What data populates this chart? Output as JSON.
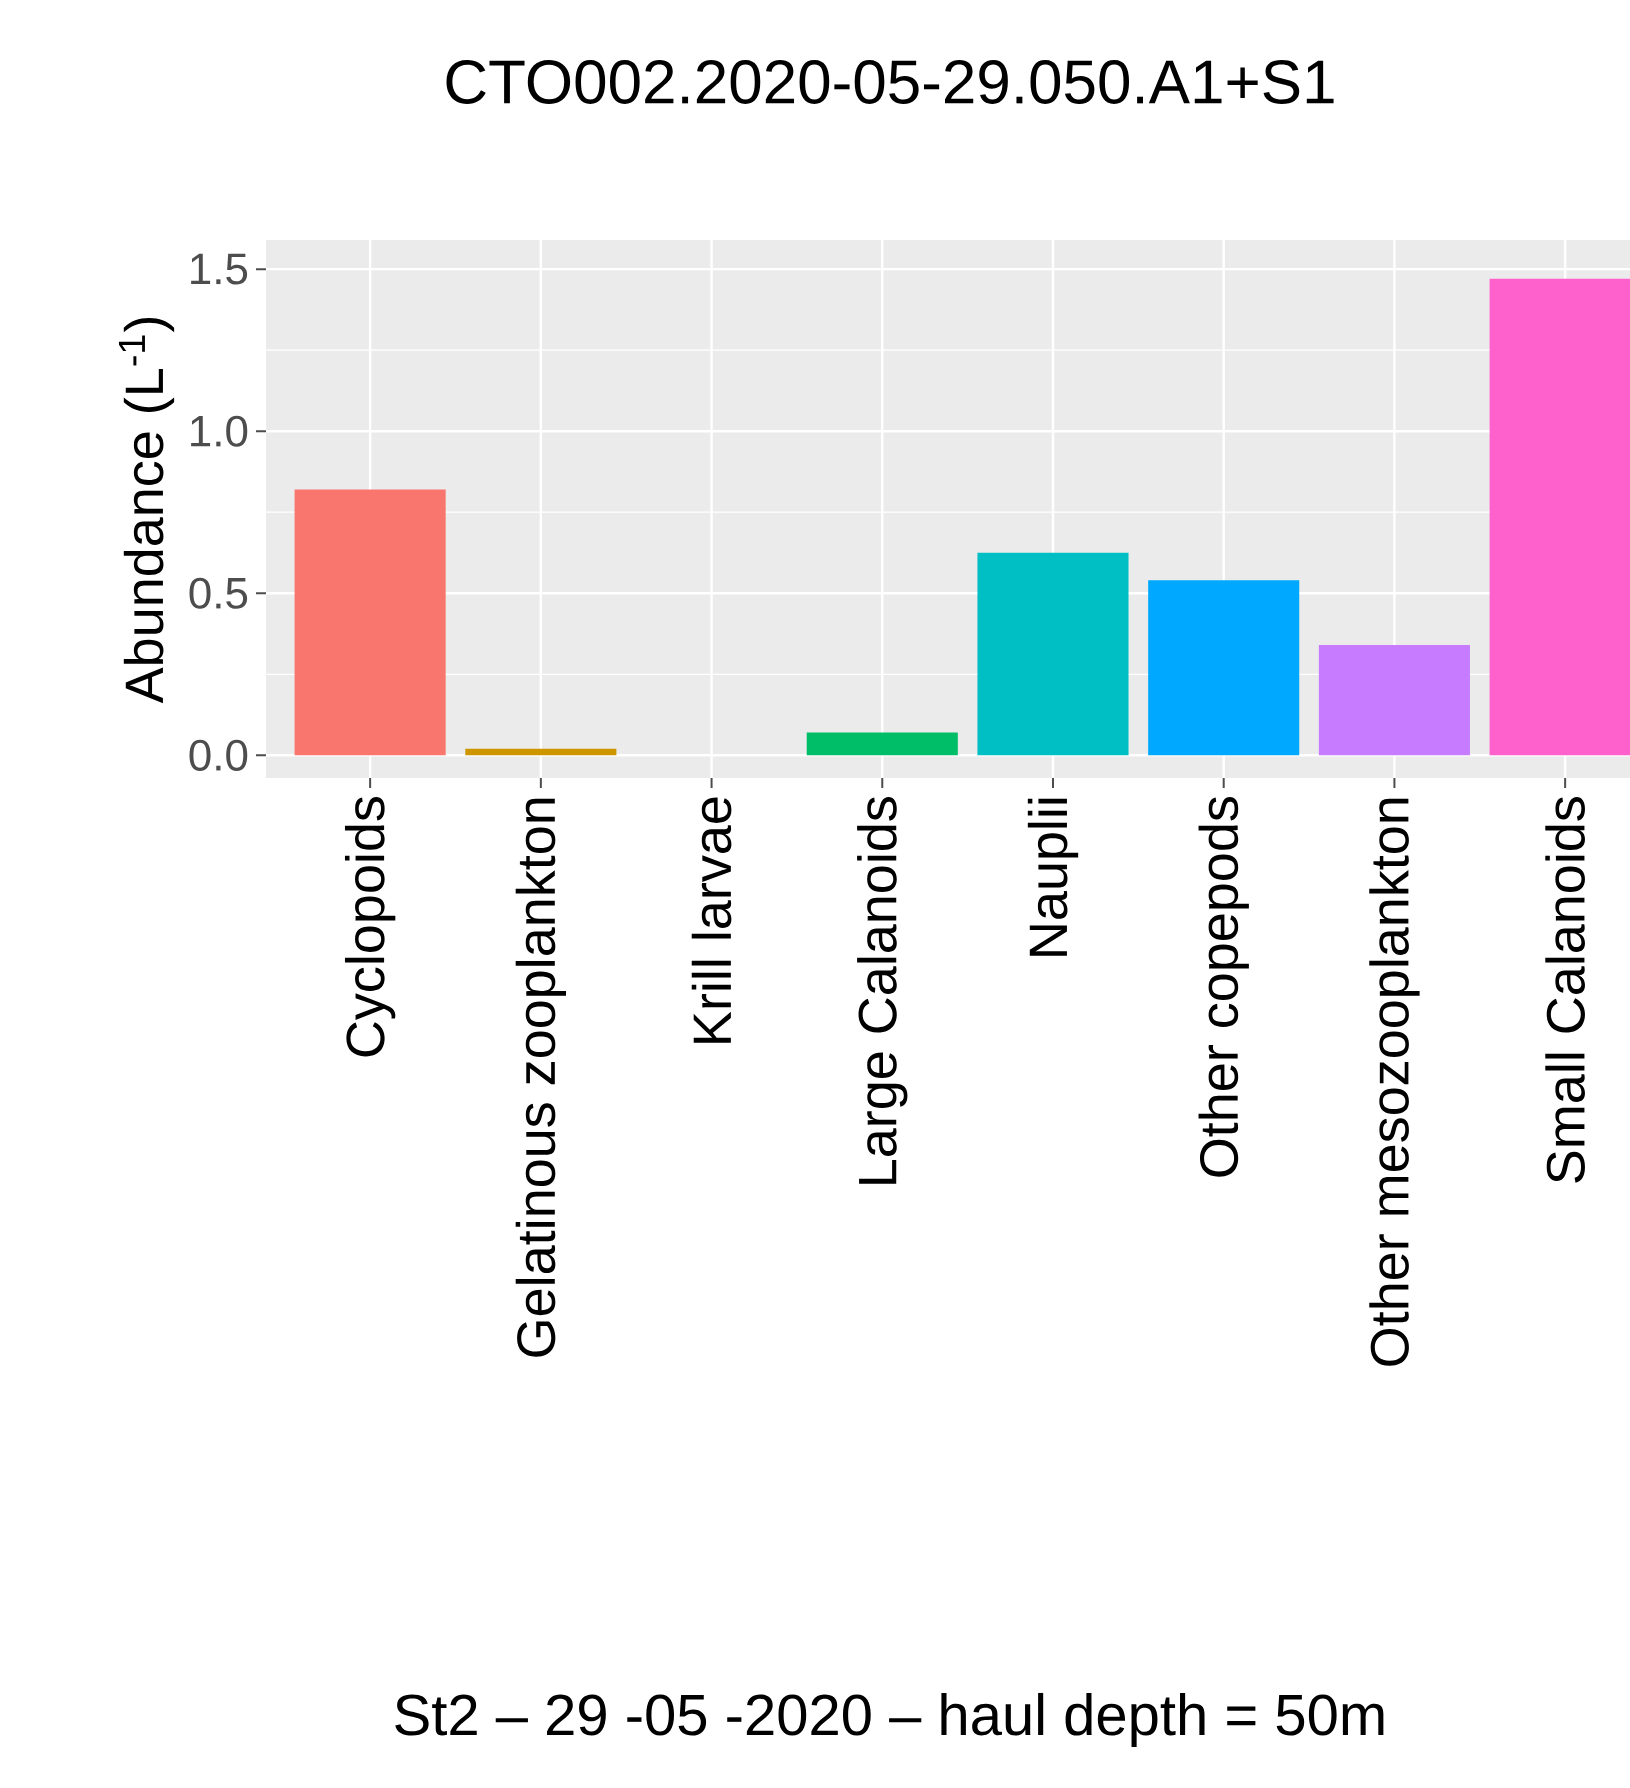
{
  "chart_data": {
    "type": "bar",
    "title": "CTO002.2020-05-29.050.A1+S1",
    "ylabel": "Abundance (L$^{-1}$)",
    "categories": [
      "Cyclopoids",
      "Gelatinous zooplankton",
      "Krill larvae",
      "Large Calanoids",
      "Nauplii",
      "Other copepods",
      "Other mesozooplankton",
      "Small Calanoids"
    ],
    "values": [
      0.82,
      0.02,
      0,
      0.07,
      0.625,
      0.54,
      0.34,
      1.47
    ],
    "colors": [
      "#F8766D",
      "#CD9600",
      "#7CAE00",
      "#00BE67",
      "#00BFC4",
      "#00A9FF",
      "#C77CFF",
      "#FF61CC"
    ],
    "ylim": [
      -0.07,
      1.59
    ],
    "yticks": [
      {
        "value": 0,
        "label": "0.0"
      },
      0.5,
      {
        "value": 1,
        "label": "1.0"
      },
      1.5
    ],
    "grid": true,
    "annotations": [
      "St2 – 29 -05 -2020 – haul depth = 50m"
    ]
  }
}
